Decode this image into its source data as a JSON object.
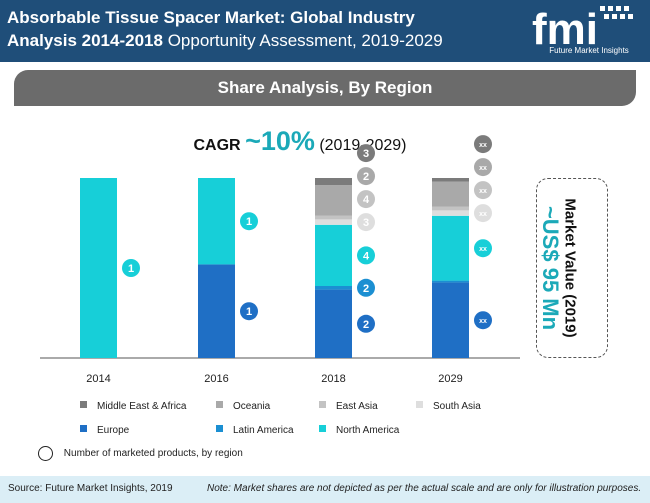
{
  "header": {
    "title_bold_line1": "Absorbable Tissue Spacer Market: Global Industry",
    "title_bold_line2": "Analysis 2014-2018",
    "title_rest": "Opportunity Assessment, 2019-2029",
    "logo_text": "fmi",
    "logo_tagline": "Future Market Insights"
  },
  "subtitle": "Share Analysis, By Region",
  "cagr": {
    "label": "CAGR",
    "value": "~10%",
    "period": "(2019-2029)"
  },
  "market_value": {
    "label": "Market Value (2019)",
    "value": "~US$ 95 Mn"
  },
  "colors": {
    "middle_east_africa": "#7b7b7b",
    "oceania": "#a9a9a9",
    "east_asia": "#c3c3c3",
    "south_asia": "#dedede",
    "europe": "#1f6fc5",
    "latin_america": "#1b8fd2",
    "north_america": "#17cfd8"
  },
  "chart_data": {
    "type": "bar",
    "stacked": true,
    "categories": [
      "2014",
      "2016",
      "2018",
      "2029"
    ],
    "ylim": [
      0,
      100
    ],
    "series": [
      {
        "name": "Europe",
        "key": "europe",
        "values": [
          0,
          52,
          38,
          42
        ],
        "counts": [
          "",
          "1",
          "2",
          "xx"
        ]
      },
      {
        "name": "Latin America",
        "key": "latin_america",
        "values": [
          0,
          0,
          2,
          1
        ],
        "counts": [
          "",
          "",
          "2",
          ""
        ]
      },
      {
        "name": "North America",
        "key": "north_america",
        "values": [
          100,
          48,
          34,
          36
        ],
        "counts": [
          "1",
          "1",
          "4",
          "xx"
        ]
      },
      {
        "name": "South Asia",
        "key": "south_asia",
        "values": [
          0,
          0,
          3,
          3
        ],
        "counts": [
          "",
          "",
          "3",
          "xx"
        ]
      },
      {
        "name": "East Asia",
        "key": "east_asia",
        "values": [
          0,
          0,
          2,
          2
        ],
        "counts": [
          "",
          "",
          "4",
          "xx"
        ]
      },
      {
        "name": "Oceania",
        "key": "oceania",
        "values": [
          0,
          0,
          17,
          14
        ],
        "counts": [
          "",
          "",
          "2",
          "xx"
        ]
      },
      {
        "name": "Middle East & Africa",
        "key": "middle_east_africa",
        "values": [
          0,
          0,
          4,
          2
        ],
        "counts": [
          "",
          "",
          "3",
          "xx"
        ]
      }
    ]
  },
  "legend": [
    {
      "label": "Middle East & Africa",
      "key": "middle_east_africa"
    },
    {
      "label": "Oceania",
      "key": "oceania"
    },
    {
      "label": "East Asia",
      "key": "east_asia"
    },
    {
      "label": "South Asia",
      "key": "south_asia"
    },
    {
      "label": "Europe",
      "key": "europe"
    },
    {
      "label": "Latin America",
      "key": "latin_america"
    },
    {
      "label": "North America",
      "key": "north_america"
    }
  ],
  "circle_note": "Number of marketed products, by region",
  "footer": {
    "source": "Source: Future Market Insights, 2019",
    "note": "Note: Market shares are not depicted as per the actual scale and are only for illustration purposes."
  }
}
